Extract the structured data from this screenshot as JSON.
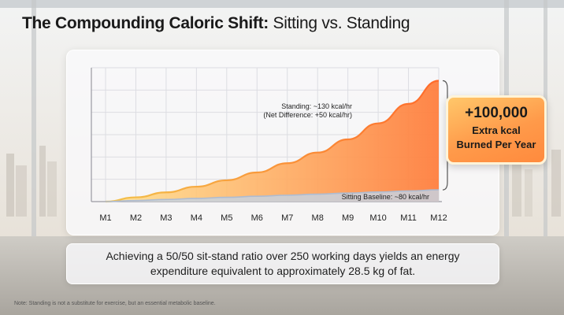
{
  "title_bold": "The Compounding Caloric Shift:",
  "title_rest": "Sitting vs. Standing",
  "chart_data": {
    "type": "area",
    "x": [
      "M1",
      "M2",
      "M3",
      "M4",
      "M5",
      "M6",
      "M7",
      "M8",
      "M9",
      "M10",
      "M11",
      "M12"
    ],
    "series": [
      {
        "values": [
          0,
          1.2,
          2.6,
          4.2,
          6.0,
          8.2,
          10.8,
          13.8,
          17.5,
          22.0,
          27.5,
          34.0
        ]
      },
      {
        "values": [
          0,
          0.3,
          0.6,
          0.9,
          1.2,
          1.5,
          1.8,
          2.1,
          2.4,
          2.7,
          3.0,
          3.3
        ]
      }
    ],
    "annotations": {
      "standing_label": "Standing: ~130 kcal/hr",
      "standing_sub": "(Net Difference: +50 kcal/hr)",
      "sitting_label": "Sitting Baseline: ~80 kcal/hr"
    },
    "ylim": [
      0,
      35
    ],
    "grid": true,
    "colors": {
      "standing_start": "#ffe08a",
      "standing_end": "#ff7f3f",
      "sitting": "#c7d2e0"
    }
  },
  "callout": {
    "big": "+100,000",
    "line1": "Extra kcal",
    "line2": "Burned Per Year"
  },
  "summary": "Achieving a 50/50 sit-stand ratio over 250 working days yields an energy expenditure equivalent to approximately 28.5 kg of fat.",
  "note": "Note: Standing is not a substitute for exercise, but an essential metabolic baseline."
}
